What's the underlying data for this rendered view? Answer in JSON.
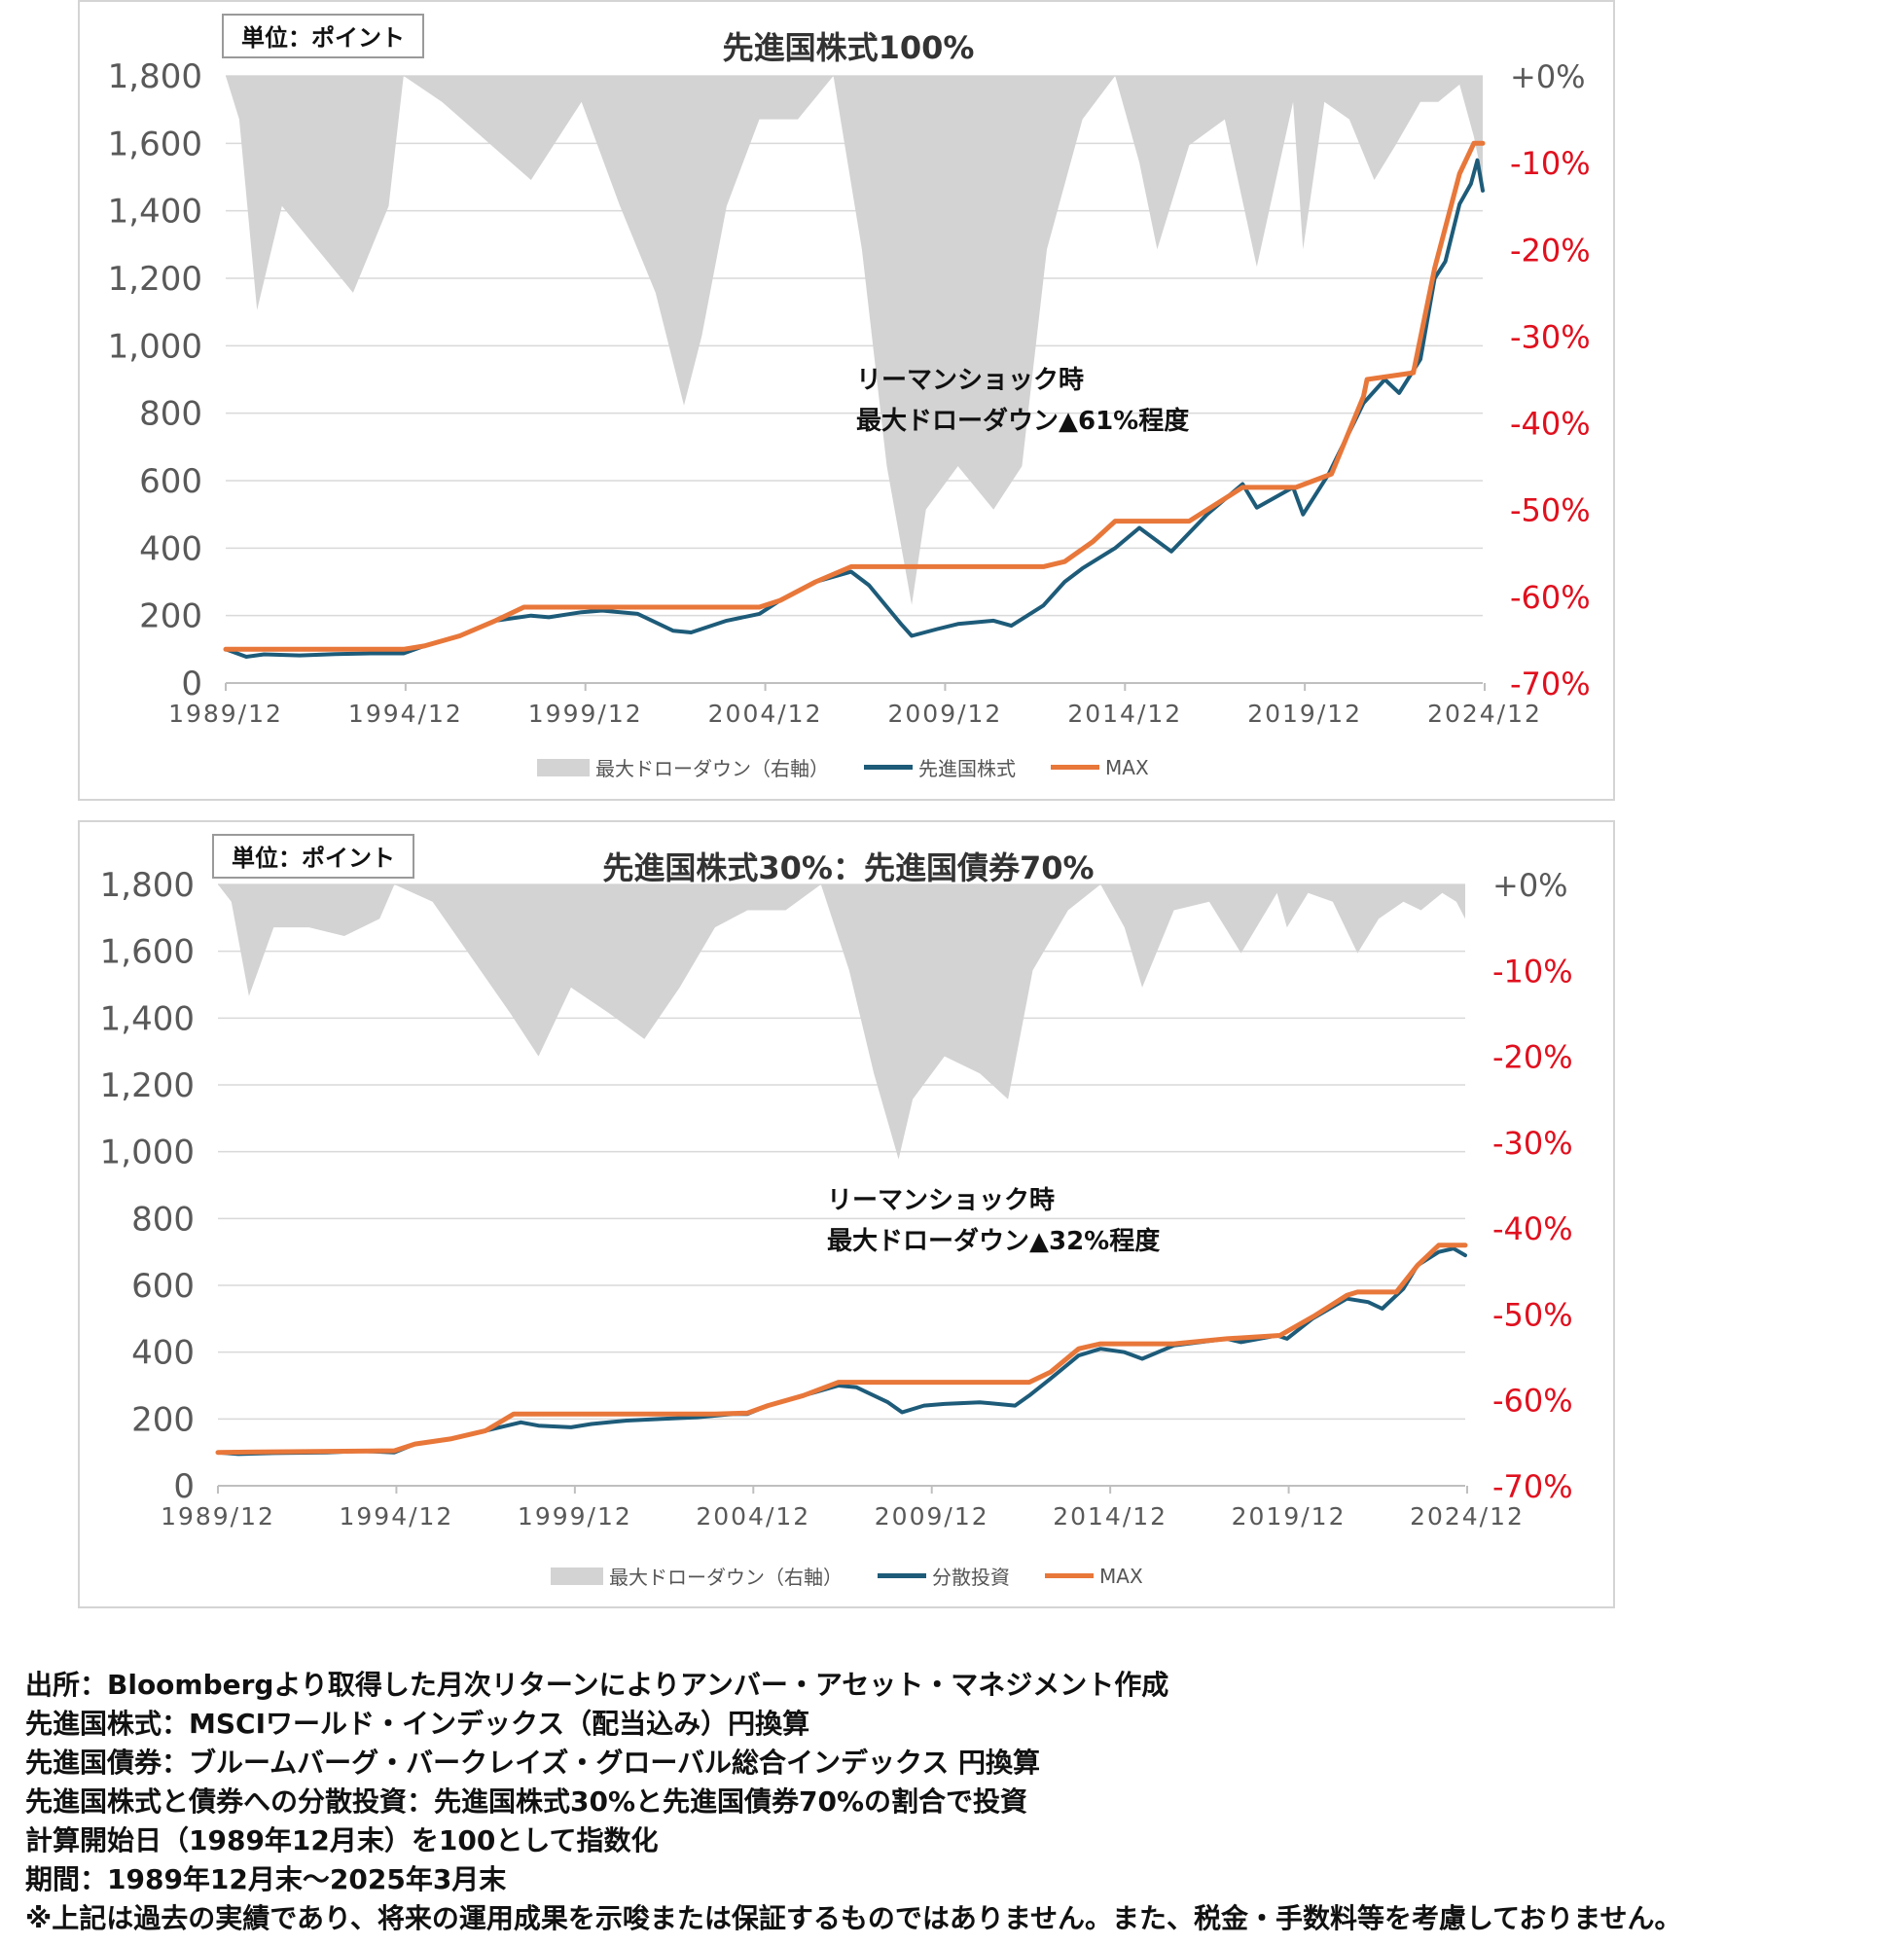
{
  "charts": [
    {
      "unit_label": "単位：ポイント",
      "title": "先進国株式100%",
      "annotation": [
        "リーマンショック時",
        "最大ドローダウン▲61%程度"
      ],
      "legend": {
        "drawdown": "最大ドローダウン（右軸）",
        "series": "先進国株式",
        "max": "MAX"
      }
    },
    {
      "unit_label": "単位：ポイント",
      "title": "先進国株式30%：先進国債券70%",
      "annotation": [
        "リーマンショック時",
        "最大ドローダウン▲32%程度"
      ],
      "legend": {
        "drawdown": "最大ドローダウン（右軸）",
        "series": "分散投資",
        "max": "MAX"
      }
    }
  ],
  "colors": {
    "drawdown": "#d3d3d3",
    "series": "#1d5b79",
    "max": "#e8773a",
    "right_axis_negative": "#e0101e",
    "grid": "#d9d9d9",
    "axis_text": "#595959"
  },
  "chart_data": [
    {
      "type": "line",
      "title": "先進国株式100%",
      "x_ticks": [
        "1989/12",
        "1994/12",
        "1999/12",
        "2004/12",
        "2009/12",
        "2014/12",
        "2019/12",
        "2024/12"
      ],
      "xlim": [
        1989.92,
        2025.25
      ],
      "y_left": {
        "ticks": [
          "0",
          "200",
          "400",
          "600",
          "800",
          "1,000",
          "1,200",
          "1,400",
          "1,600",
          "1,800"
        ],
        "ylim": [
          0,
          1800
        ]
      },
      "y_right": {
        "ticks": [
          "+0%",
          "-10%",
          "-20%",
          "-30%",
          "-40%",
          "-50%",
          "-60%",
          "-70%"
        ],
        "ylim": [
          -70,
          0
        ]
      },
      "series": [
        {
          "name": "先進国株式",
          "x": [
            1989.92,
            1990.5,
            1991.0,
            1992.0,
            1993.0,
            1994.0,
            1994.92,
            1995.5,
            1996.5,
            1997.5,
            1998.5,
            1999.0,
            1999.92,
            2000.5,
            2001.5,
            2002.5,
            2003.0,
            2004.0,
            2004.92,
            2005.5,
            2006.5,
            2007.5,
            2008.0,
            2008.9,
            2009.2,
            2009.92,
            2010.5,
            2011.5,
            2012.0,
            2012.9,
            2013.5,
            2014.0,
            2014.92,
            2015.6,
            2016.5,
            2017.5,
            2018.5,
            2018.9,
            2019.92,
            2020.2,
            2020.92,
            2021.9,
            2022.5,
            2022.9,
            2023.5,
            2023.9,
            2024.2,
            2024.6,
            2024.92,
            2025.1,
            2025.25
          ],
          "values": [
            100,
            78,
            85,
            82,
            86,
            88,
            88,
            110,
            140,
            185,
            200,
            195,
            210,
            215,
            205,
            155,
            150,
            185,
            205,
            245,
            300,
            330,
            290,
            175,
            140,
            160,
            175,
            185,
            170,
            230,
            300,
            340,
            400,
            460,
            390,
            500,
            590,
            520,
            580,
            500,
            620,
            830,
            900,
            860,
            960,
            1200,
            1250,
            1420,
            1480,
            1550,
            1460
          ]
        },
        {
          "name": "MAX",
          "x": [
            1989.92,
            1994.92,
            1995.5,
            1996.5,
            1997.5,
            1998.3,
            2004.92,
            2005.5,
            2006.5,
            2007.5,
            2012.9,
            2013.5,
            2014.3,
            2014.92,
            2017.0,
            2018.5,
            2020.0,
            2021.0,
            2021.9,
            2022.0,
            2023.3,
            2023.9,
            2024.6,
            2025.0,
            2025.25
          ],
          "values": [
            100,
            100,
            110,
            140,
            185,
            225,
            225,
            245,
            300,
            345,
            345,
            360,
            420,
            480,
            480,
            580,
            580,
            620,
            850,
            900,
            920,
            1230,
            1510,
            1600,
            1600
          ]
        }
      ],
      "drawdown": {
        "name": "最大ドローダウン（右軸）",
        "x": [
          1989.92,
          1990.3,
          1990.8,
          1991.5,
          1992.5,
          1993.5,
          1994.5,
          1994.92,
          1996.0,
          1998.5,
          1999.92,
          2001.0,
          2002.0,
          2002.8,
          2003.3,
          2004.0,
          2004.92,
          2006.0,
          2007.0,
          2007.8,
          2008.5,
          2009.2,
          2009.6,
          2010.5,
          2011.5,
          2012.3,
          2013.0,
          2014.0,
          2014.92,
          2015.6,
          2016.1,
          2017.0,
          2018.0,
          2018.9,
          2019.92,
          2020.2,
          2020.8,
          2021.5,
          2022.2,
          2022.8,
          2023.5,
          2024.0,
          2024.6,
          2025.0,
          2025.25
        ],
        "values": [
          0,
          -5,
          -27,
          -15,
          -20,
          -25,
          -15,
          0,
          -3,
          -12,
          -3,
          -15,
          -25,
          -38,
          -30,
          -15,
          -5,
          -5,
          0,
          -20,
          -45,
          -61,
          -50,
          -45,
          -50,
          -45,
          -20,
          -5,
          0,
          -10,
          -20,
          -8,
          -5,
          -22,
          -3,
          -20,
          -3,
          -5,
          -12,
          -8,
          -3,
          -3,
          -1,
          -7,
          -12
        ]
      }
    },
    {
      "type": "line",
      "title": "先進国株式30%：先進国債券70%",
      "x_ticks": [
        "1989/12",
        "1994/12",
        "1999/12",
        "2004/12",
        "2009/12",
        "2014/12",
        "2019/12",
        "2024/12"
      ],
      "xlim": [
        1989.92,
        2025.25
      ],
      "y_left": {
        "ticks": [
          "0",
          "200",
          "400",
          "600",
          "800",
          "1,000",
          "1,200",
          "1,400",
          "1,600",
          "1,800"
        ],
        "ylim": [
          0,
          1800
        ]
      },
      "y_right": {
        "ticks": [
          "+0%",
          "-10%",
          "-20%",
          "-30%",
          "-40%",
          "-50%",
          "-60%",
          "-70%"
        ],
        "ylim": [
          -70,
          0
        ]
      },
      "series": [
        {
          "name": "分散投資",
          "x": [
            1989.92,
            1990.5,
            1991.5,
            1993.0,
            1994.0,
            1994.92,
            1995.5,
            1996.5,
            1997.5,
            1998.5,
            1999.0,
            1999.92,
            2000.5,
            2001.5,
            2002.5,
            2003.5,
            2004.5,
            2004.92,
            2005.5,
            2006.5,
            2007.5,
            2008.0,
            2008.9,
            2009.3,
            2009.92,
            2010.5,
            2011.5,
            2012.5,
            2012.9,
            2013.5,
            2014.3,
            2014.92,
            2015.6,
            2016.1,
            2017.0,
            2018.5,
            2018.9,
            2019.92,
            2020.2,
            2020.92,
            2021.9,
            2022.5,
            2022.9,
            2023.5,
            2023.9,
            2024.5,
            2024.92,
            2025.25
          ],
          "values": [
            100,
            95,
            98,
            100,
            104,
            100,
            125,
            140,
            165,
            190,
            180,
            175,
            185,
            195,
            200,
            205,
            215,
            215,
            240,
            270,
            300,
            295,
            250,
            220,
            240,
            245,
            250,
            240,
            270,
            320,
            390,
            410,
            400,
            380,
            420,
            440,
            430,
            450,
            440,
            500,
            560,
            550,
            530,
            590,
            660,
            700,
            710,
            690
          ]
        },
        {
          "name": "MAX",
          "x": [
            1989.92,
            1994.92,
            1995.5,
            1996.5,
            1997.5,
            1998.3,
            2004.0,
            2004.92,
            2005.5,
            2006.5,
            2007.5,
            2012.9,
            2013.5,
            2014.3,
            2014.92,
            2017.0,
            2018.5,
            2020.0,
            2021.0,
            2021.9,
            2022.2,
            2023.3,
            2023.9,
            2024.5,
            2025.25
          ],
          "values": [
            100,
            105,
            125,
            140,
            165,
            215,
            215,
            218,
            240,
            270,
            310,
            310,
            340,
            410,
            425,
            425,
            440,
            450,
            510,
            570,
            580,
            580,
            660,
            720,
            720
          ]
        }
      ],
      "drawdown": {
        "name": "最大ドローダウン（右軸）",
        "x": [
          1989.92,
          1990.3,
          1990.8,
          1991.5,
          1992.5,
          1993.5,
          1994.5,
          1994.92,
          1996.0,
          1998.2,
          1999.0,
          1999.92,
          2001.0,
          2002.0,
          2003.0,
          2004.0,
          2004.92,
          2006.0,
          2007.0,
          2007.8,
          2008.5,
          2009.2,
          2009.6,
          2010.5,
          2011.5,
          2012.3,
          2013.0,
          2014.0,
          2014.92,
          2015.6,
          2016.1,
          2017.0,
          2018.0,
          2018.9,
          2019.92,
          2020.2,
          2020.8,
          2021.5,
          2022.2,
          2022.8,
          2023.5,
          2024.0,
          2024.6,
          2025.0,
          2025.25
        ],
        "values": [
          0,
          -2,
          -13,
          -5,
          -5,
          -6,
          -4,
          0,
          -2,
          -15,
          -20,
          -12,
          -15,
          -18,
          -12,
          -5,
          -3,
          -3,
          0,
          -10,
          -22,
          -32,
          -25,
          -20,
          -22,
          -25,
          -10,
          -3,
          0,
          -5,
          -12,
          -3,
          -2,
          -8,
          -1,
          -5,
          -1,
          -2,
          -8,
          -4,
          -2,
          -3,
          -1,
          -2,
          -4
        ]
      }
    }
  ],
  "notes": [
    "出所：Bloombergより取得した月次リターンによりアンバー・アセット・マネジメント作成",
    "先進国株式：MSCIワールド・インデックス（配当込み）円換算",
    "先進国債券：ブルームバーグ・バークレイズ・グローバル総合インデックス 円換算",
    "先進国株式と債券への分散投資：先進国株式30%と先進国債券70%の割合で投資",
    "計算開始日（1989年12月末）を100として指数化",
    "期間：1989年12月末～2025年3月末",
    "※上記は過去の実績であり、将来の運用成果を示唆または保証するものではありません。また、税金・手数料等を考慮しておりません。"
  ]
}
